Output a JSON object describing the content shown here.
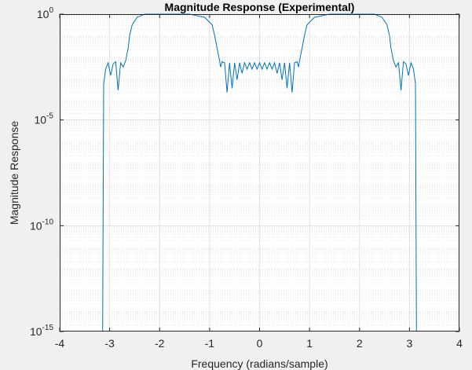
{
  "chart_data": {
    "type": "line",
    "title": "Magnitude Response (Experimental)",
    "xlabel": "Frequency (radians/sample)",
    "ylabel": "Magnitude Response",
    "xlim": [
      -4,
      4
    ],
    "ylim_exponent": [
      -15,
      0
    ],
    "yscale": "log",
    "grid": true,
    "minor_grid": true,
    "line_color": "#0072bd",
    "x_ticks": [
      "-4",
      "-3",
      "-2",
      "-1",
      "0",
      "1",
      "2",
      "3",
      "4"
    ],
    "y_tick_base": "10",
    "y_tick_exponents": [
      "-15",
      "-10",
      "-5",
      "0"
    ],
    "series": [
      {
        "x": [
          -3.14,
          -3.12,
          -3.08,
          -3.03,
          -2.98,
          -2.93,
          -2.88,
          -2.83,
          -2.78,
          -2.73,
          -2.68,
          -2.63,
          -2.6,
          -2.55,
          -2.45,
          -2.3,
          -2.15,
          -2.0,
          -1.7,
          -1.4,
          -1.1,
          -0.95,
          -0.9,
          -0.85,
          -0.8,
          -0.78,
          -0.75,
          -0.7,
          -0.65,
          -0.6,
          -0.55,
          -0.5,
          -0.45,
          -0.4,
          -0.35,
          -0.3,
          -0.25,
          -0.2,
          -0.15,
          -0.1,
          -0.05,
          0.0,
          0.05,
          0.1,
          0.15,
          0.2,
          0.25,
          0.3,
          0.35,
          0.4,
          0.45,
          0.5,
          0.55,
          0.6,
          0.65,
          0.7,
          0.75,
          0.78,
          0.8,
          0.85,
          0.9,
          0.95,
          1.1,
          1.4,
          1.7,
          2.0,
          2.15,
          2.3,
          2.45,
          2.55,
          2.6,
          2.63,
          2.68,
          2.73,
          2.78,
          2.83,
          2.88,
          2.93,
          2.98,
          3.03,
          3.08,
          3.12,
          3.14
        ],
        "y_log10": [
          -15,
          -3.3,
          -2.6,
          -2.3,
          -2.9,
          -2.35,
          -2.25,
          -3.6,
          -2.3,
          -2.5,
          -2.2,
          -1.6,
          -1.0,
          -0.5,
          -0.15,
          0,
          0,
          0,
          0,
          0,
          -0.15,
          -0.5,
          -1.0,
          -1.6,
          -2.2,
          -2.5,
          -2.25,
          -2.3,
          -3.7,
          -2.3,
          -3.5,
          -2.3,
          -3.1,
          -2.3,
          -2.8,
          -2.3,
          -2.6,
          -2.3,
          -2.6,
          -2.3,
          -2.6,
          -2.3,
          -2.6,
          -2.3,
          -2.6,
          -2.3,
          -2.6,
          -2.3,
          -2.8,
          -2.3,
          -3.1,
          -2.3,
          -3.5,
          -2.3,
          -3.7,
          -2.3,
          -2.25,
          -2.5,
          -2.2,
          -1.6,
          -1.0,
          -0.5,
          -0.15,
          0,
          0,
          0,
          0,
          0,
          -0.15,
          -0.5,
          -1.0,
          -1.6,
          -2.2,
          -2.5,
          -2.3,
          -3.6,
          -2.25,
          -2.35,
          -2.9,
          -2.3,
          -2.6,
          -3.3,
          -15
        ]
      }
    ]
  }
}
